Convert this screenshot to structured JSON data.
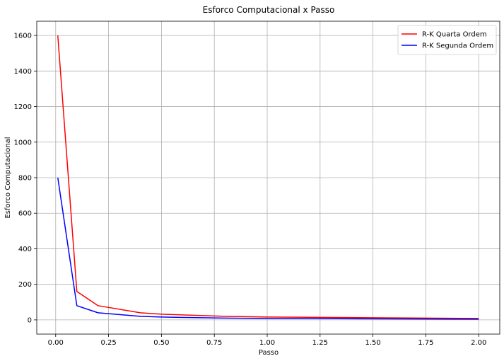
{
  "chart_data": {
    "type": "line",
    "title": "Esforco Computacional x Passo",
    "xlabel": "Passo",
    "ylabel": "Esforco Computacional",
    "xlim": [
      -0.0895,
      2.0995
    ],
    "ylim": [
      -80,
      1680
    ],
    "xticks": [
      0.0,
      0.25,
      0.5,
      0.75,
      1.0,
      1.25,
      1.5,
      1.75,
      2.0
    ],
    "xtick_labels": [
      "0.00",
      "0.25",
      "0.50",
      "0.75",
      "1.00",
      "1.25",
      "1.50",
      "1.75",
      "2.00"
    ],
    "yticks": [
      0,
      200,
      400,
      600,
      800,
      1000,
      1200,
      1400,
      1600
    ],
    "ytick_labels": [
      "0",
      "200",
      "400",
      "600",
      "800",
      "1000",
      "1200",
      "1400",
      "1600"
    ],
    "grid": true,
    "legend_position": "top-right",
    "series": [
      {
        "name": "R-K Quarta Ordem",
        "color": "#ff0000",
        "x": [
          0.01,
          0.1,
          0.2,
          0.4,
          0.5,
          0.8,
          1.0,
          2.0
        ],
        "y": [
          1600,
          160,
          80,
          40,
          32,
          20,
          16,
          8
        ]
      },
      {
        "name": "R-K Segunda Ordem",
        "color": "#0000ff",
        "x": [
          0.01,
          0.1,
          0.2,
          0.4,
          0.5,
          0.8,
          1.0,
          2.0
        ],
        "y": [
          800,
          80,
          40,
          20,
          16,
          10,
          8,
          4
        ]
      }
    ]
  }
}
